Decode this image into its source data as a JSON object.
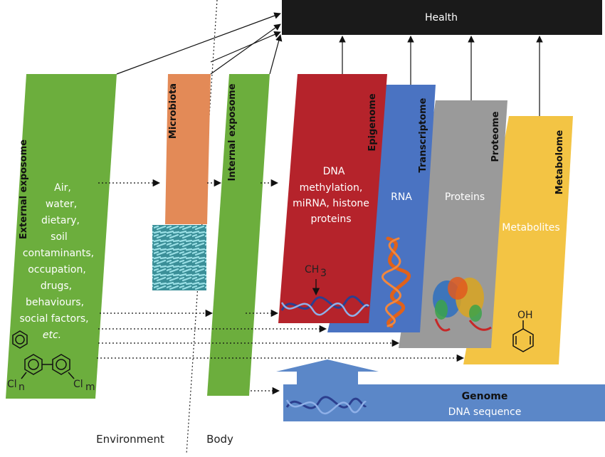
{
  "colors": {
    "green": "#6cae3d",
    "orange": "#e38a57",
    "red": "#b5232b",
    "blue": "#4a73c2",
    "gray": "#9a9a9a",
    "yellow": "#f3c444",
    "black": "#1a1a1a",
    "genome": "#5b87c8"
  },
  "health": "Health",
  "boundary": {
    "environment": "Environment",
    "body": "Body"
  },
  "external": {
    "title": "External exposome",
    "items": [
      "Air,",
      "water,",
      "dietary,",
      "soil",
      "contaminants,",
      "occupation,",
      "drugs,",
      "behaviours,",
      "social factors,"
    ],
    "etc": "etc."
  },
  "microbiota": {
    "title": "Microbiota"
  },
  "internal": {
    "title": "Internal exposome"
  },
  "epigenome": {
    "title": "Epigenome",
    "lines": [
      "DNA",
      "methylation,",
      "miRNA, histone",
      "proteins"
    ],
    "methyl": "CH",
    "methyl_sub": "3"
  },
  "transcriptome": {
    "title": "Transcriptome",
    "content": "RNA"
  },
  "proteome": {
    "title": "Proteome",
    "content": "Proteins"
  },
  "metabolome": {
    "title": "Metabolome",
    "content": "Metabolites",
    "oh": "OH"
  },
  "genome": {
    "title": "Genome",
    "content": "DNA sequence"
  },
  "pcb": {
    "cl": "Cl",
    "n": "n",
    "m": "m"
  }
}
